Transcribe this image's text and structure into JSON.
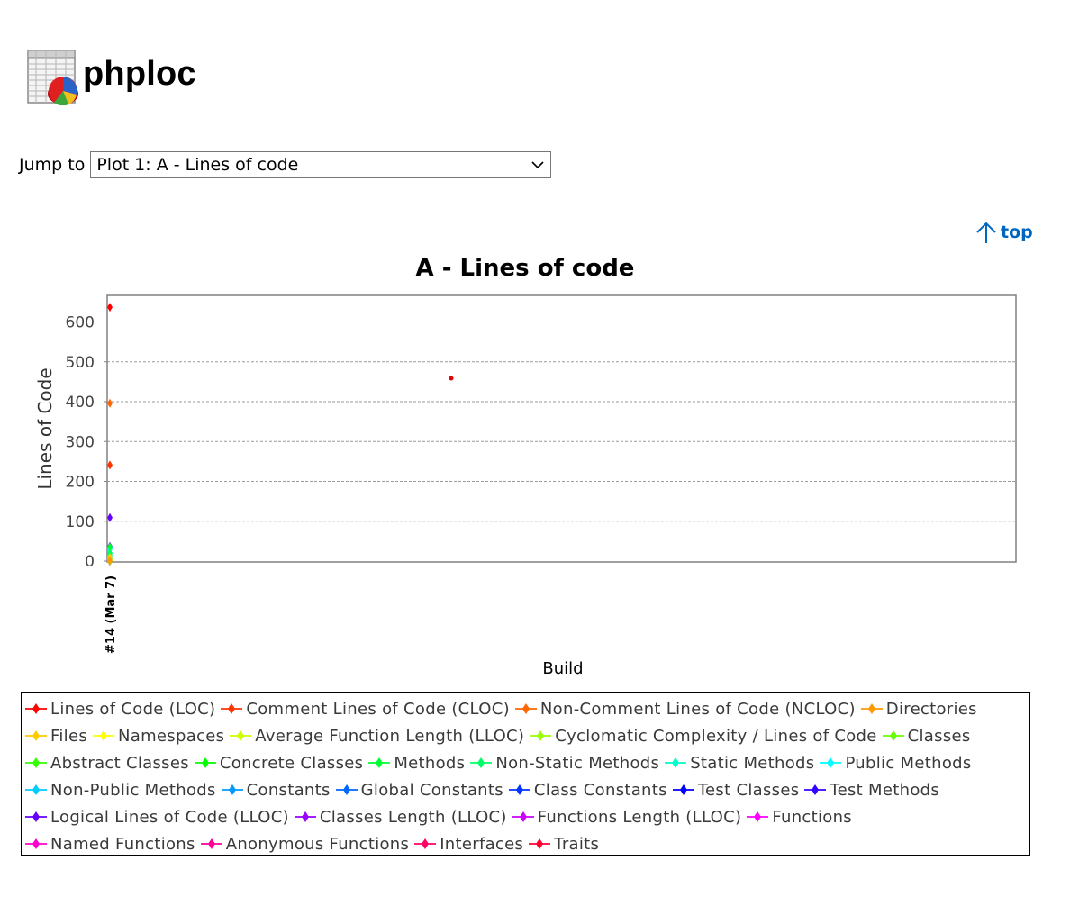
{
  "header": {
    "title": "phploc",
    "icon": "spreadsheet-pie-chart-icon"
  },
  "jump": {
    "label": "Jump to",
    "selected": "Plot 1: A - Lines of code"
  },
  "top_link": {
    "label": "top",
    "icon": "arrow-up-icon"
  },
  "chart_data": {
    "type": "line",
    "title": "A - Lines of code",
    "xlabel": "Build",
    "ylabel": "Lines of Code",
    "categories": [
      "#14 (Mar 7)"
    ],
    "ylim": [
      0,
      660
    ],
    "yticks": [
      0,
      100,
      200,
      300,
      400,
      500,
      600
    ],
    "grid": true,
    "legend_position": "bottom",
    "series": [
      {
        "name": "Lines of Code (LOC)",
        "color": "#ff0000",
        "values": [
          637
        ]
      },
      {
        "name": "Comment Lines of Code (CLOC)",
        "color": "#ff3300",
        "values": [
          241
        ]
      },
      {
        "name": "Non-Comment Lines of Code (NCLOC)",
        "color": "#ff6600",
        "values": [
          396
        ]
      },
      {
        "name": "Directories",
        "color": "#ff9900",
        "values": [
          1
        ]
      },
      {
        "name": "Files",
        "color": "#ffcc00",
        "values": [
          9
        ]
      },
      {
        "name": "Namespaces",
        "color": "#ffff00",
        "values": [
          1
        ]
      },
      {
        "name": "Average Function Length (LLOC)",
        "color": "#ccff00",
        "values": [
          3
        ]
      },
      {
        "name": "Cyclomatic Complexity / Lines of Code",
        "color": "#99ff00",
        "values": [
          0
        ]
      },
      {
        "name": "Classes",
        "color": "#66ff00",
        "values": [
          9
        ]
      },
      {
        "name": "Abstract Classes",
        "color": "#33ff00",
        "values": [
          0
        ]
      },
      {
        "name": "Concrete Classes",
        "color": "#00ff00",
        "values": [
          9
        ]
      },
      {
        "name": "Methods",
        "color": "#00ff33",
        "values": [
          35
        ]
      },
      {
        "name": "Non-Static Methods",
        "color": "#00ff66",
        "values": [
          20
        ]
      },
      {
        "name": "Static Methods",
        "color": "#00ffcc",
        "values": [
          15
        ]
      },
      {
        "name": "Public Methods",
        "color": "#00ffff",
        "values": [
          30
        ]
      },
      {
        "name": "Non-Public Methods",
        "color": "#00ccff",
        "values": [
          5
        ]
      },
      {
        "name": "Constants",
        "color": "#0099ff",
        "values": [
          0
        ]
      },
      {
        "name": "Global Constants",
        "color": "#0066ff",
        "values": [
          0
        ]
      },
      {
        "name": "Class Constants",
        "color": "#0033ff",
        "values": [
          0
        ]
      },
      {
        "name": "Test Classes",
        "color": "#0000ff",
        "values": [
          0
        ]
      },
      {
        "name": "Test Methods",
        "color": "#3300ff",
        "values": [
          0
        ]
      },
      {
        "name": "Logical Lines of Code (LLOC)",
        "color": "#6600ff",
        "values": [
          109
        ]
      },
      {
        "name": "Classes Length (LLOC)",
        "color": "#9900ff",
        "values": [
          37
        ]
      },
      {
        "name": "Functions Length (LLOC)",
        "color": "#cc00ff",
        "values": [
          0
        ]
      },
      {
        "name": "Functions",
        "color": "#ff00ff",
        "values": [
          0
        ]
      },
      {
        "name": "Named Functions",
        "color": "#ff00cc",
        "values": [
          0
        ]
      },
      {
        "name": "Anonymous Functions",
        "color": "#ff0099",
        "values": [
          0
        ]
      },
      {
        "name": "Interfaces",
        "color": "#ff0066",
        "values": [
          0
        ]
      },
      {
        "name": "Traits",
        "color": "#ff0033",
        "values": [
          0
        ]
      }
    ],
    "legend_rows": [
      [
        "Lines of Code (LOC)",
        "Comment Lines of Code (CLOC)",
        "Non-Comment Lines of Code (NCLOC)",
        "Directories"
      ],
      [
        "Files",
        "Namespaces",
        "Average Function Length (LLOC)",
        "Cyclomatic Complexity / Lines of Code",
        "Classes"
      ],
      [
        "Abstract Classes",
        "Concrete Classes",
        "Methods",
        "Non-Static Methods",
        "Static Methods",
        "Public Methods"
      ],
      [
        "Non-Public Methods",
        "Constants",
        "Global Constants",
        "Class Constants",
        "Test Classes",
        "Test Methods"
      ],
      [
        "Logical Lines of Code (LLOC)",
        "Classes Length (LLOC)",
        "Functions Length (LLOC)",
        "Functions"
      ],
      [
        "Named Functions",
        "Anonymous Functions",
        "Interfaces",
        "Traits"
      ]
    ]
  }
}
